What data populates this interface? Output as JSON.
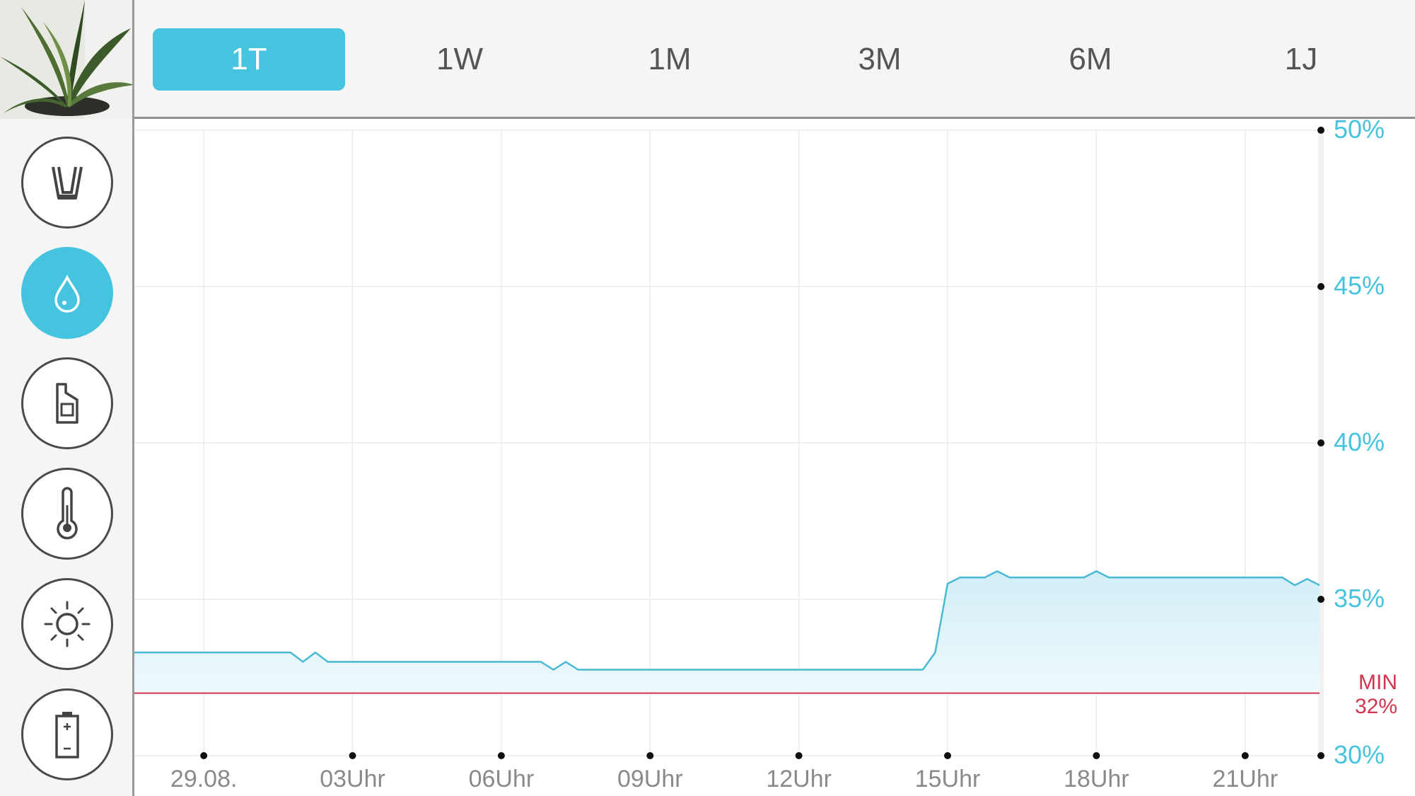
{
  "tabs": [
    {
      "label": "1T",
      "active": true
    },
    {
      "label": "1W",
      "active": false
    },
    {
      "label": "1M",
      "active": false
    },
    {
      "label": "3M",
      "active": false
    },
    {
      "label": "6M",
      "active": false
    },
    {
      "label": "1J",
      "active": false
    }
  ],
  "sidebar": {
    "items": [
      {
        "icon": "pot-icon",
        "active": false
      },
      {
        "icon": "water-drop-icon",
        "active": true
      },
      {
        "icon": "fertilizer-bottle-icon",
        "active": false
      },
      {
        "icon": "thermometer-icon",
        "active": false
      },
      {
        "icon": "sun-icon",
        "active": false
      },
      {
        "icon": "battery-icon",
        "active": false
      }
    ]
  },
  "colors": {
    "accent": "#45c3df",
    "line": "#4ab9d3",
    "fill": "#d9f1f8",
    "min_line": "#d3344e"
  },
  "chart_data": {
    "type": "area",
    "x_unit": "hours",
    "x_ticks": [
      {
        "label": "29.08.",
        "x": 0
      },
      {
        "label": "03Uhr",
        "x": 3
      },
      {
        "label": "06Uhr",
        "x": 6
      },
      {
        "label": "09Uhr",
        "x": 9
      },
      {
        "label": "12Uhr",
        "x": 12
      },
      {
        "label": "15Uhr",
        "x": 15
      },
      {
        "label": "18Uhr",
        "x": 18
      },
      {
        "label": "21Uhr",
        "x": 21
      }
    ],
    "xlim": [
      -1.4,
      22.5
    ],
    "y_ticks": [
      {
        "label": "50%",
        "value": 50
      },
      {
        "label": "45%",
        "value": 45
      },
      {
        "label": "40%",
        "value": 40
      },
      {
        "label": "35%",
        "value": 35
      },
      {
        "label": "30%",
        "value": 30
      }
    ],
    "ylim": [
      30,
      50
    ],
    "min_threshold": {
      "label": "MIN",
      "value_label": "32%",
      "value": 32
    },
    "series": [
      {
        "x": [
          -1.4,
          1.75,
          2.0,
          2.25,
          2.5,
          6.8,
          7.05,
          7.3,
          7.55,
          14.5,
          14.75,
          15.0,
          15.25,
          15.75,
          16.0,
          16.25,
          17.75,
          18.0,
          18.25,
          21.75,
          22.0,
          22.25,
          22.5
        ],
        "y": [
          33.3,
          33.3,
          33.0,
          33.3,
          33.0,
          33.0,
          32.75,
          33.0,
          32.75,
          32.75,
          33.3,
          35.5,
          35.7,
          35.7,
          35.9,
          35.7,
          35.7,
          35.9,
          35.7,
          35.7,
          35.45,
          35.65,
          35.45
        ]
      }
    ]
  }
}
